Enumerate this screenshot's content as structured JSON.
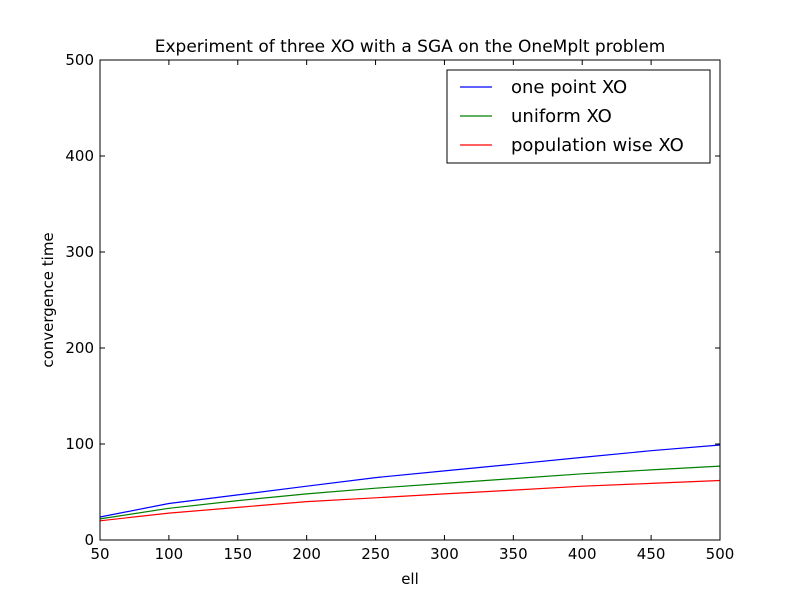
{
  "chart_data": {
    "type": "line",
    "title": "Experiment of three XO with a SGA on the OneMplt problem",
    "xlabel": "ell",
    "ylabel": "convergence time",
    "xlim": [
      50,
      500
    ],
    "ylim": [
      0,
      500
    ],
    "xticks": [
      "50",
      "100",
      "150",
      "200",
      "250",
      "300",
      "350",
      "400",
      "450",
      "500"
    ],
    "yticks": [
      "0",
      "100",
      "200",
      "300",
      "400",
      "500"
    ],
    "grid": false,
    "legend_position": "top-right",
    "x": [
      50,
      100,
      150,
      200,
      250,
      300,
      350,
      400,
      450,
      500
    ],
    "series": [
      {
        "name": "one point XO",
        "color": "#0000ff",
        "values": [
          24,
          38,
          47,
          56,
          65,
          72,
          79,
          86,
          93,
          99
        ]
      },
      {
        "name": "uniform XO",
        "color": "#008000",
        "values": [
          22,
          33,
          41,
          48,
          54,
          59,
          64,
          69,
          73,
          77
        ]
      },
      {
        "name": "population wise XO",
        "color": "#ff0000",
        "values": [
          20,
          28,
          34,
          40,
          44,
          48,
          52,
          56,
          59,
          62
        ]
      }
    ]
  }
}
